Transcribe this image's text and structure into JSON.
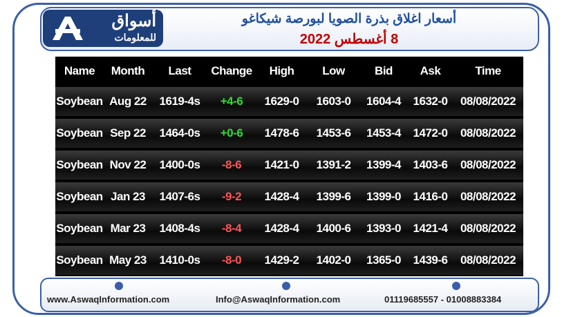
{
  "logo": {
    "name": "أسواق",
    "subtitle": "للمعلومات"
  },
  "header": {
    "title": "أسعار اغلاق بذرة الصويا لبورصة شيكاغو",
    "date": "8 أغسطس 2022"
  },
  "table": {
    "columns": [
      "Name",
      "Month",
      "Last",
      "Change",
      "High",
      "Low",
      "Bid",
      "Ask",
      "Time"
    ],
    "rows": [
      [
        "Soybean",
        "Aug 22",
        "1619-4s",
        "+4-6",
        "1629-0",
        "1603-0",
        "1604-4",
        "1632-0",
        "08/08/2022"
      ],
      [
        "Soybean",
        "Sep 22",
        "1464-0s",
        "+0-6",
        "1478-6",
        "1453-6",
        "1453-4",
        "1472-0",
        "08/08/2022"
      ],
      [
        "Soybean",
        "Nov 22",
        "1400-0s",
        "-8-6",
        "1421-0",
        "1391-2",
        "1399-4",
        "1403-6",
        "08/08/2022"
      ],
      [
        "Soybean",
        "Jan 23",
        "1407-6s",
        "-9-2",
        "1428-4",
        "1399-6",
        "1399-0",
        "1416-0",
        "08/08/2022"
      ],
      [
        "Soybean",
        "Mar 23",
        "1408-4s",
        "-8-4",
        "1428-4",
        "1400-6",
        "1393-0",
        "1421-4",
        "08/08/2022"
      ],
      [
        "Soybean",
        "May 23",
        "1410-0s",
        "-8-0",
        "1429-2",
        "1402-0",
        "1365-0",
        "1439-6",
        "08/08/2022"
      ]
    ]
  },
  "footer": {
    "website": "www.AswaqInformation.com",
    "email": "Info@AswaqInformation.com",
    "phone": "01119685557 - 01008883384"
  }
}
